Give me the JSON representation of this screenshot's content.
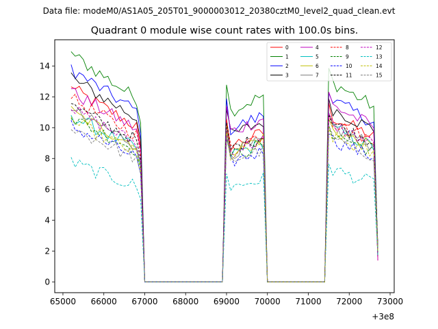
{
  "figure": {
    "suptitle": "Data file: modeM0/AS1A05_205T01_9000003012_20380cztM0_level2_quad_clean.evt"
  },
  "chart_data": {
    "type": "line",
    "title": "Quadrant 0 module wise count rates with 100.0s bins.",
    "xlabel": "",
    "ylabel": "",
    "x_offset_label": "+3e8",
    "xlim": [
      64800,
      73100
    ],
    "ylim": [
      -0.7,
      15.7
    ],
    "xticks": [
      65000,
      66000,
      67000,
      68000,
      69000,
      70000,
      71000,
      72000,
      73000
    ],
    "xtick_labels": [
      "65000",
      "66000",
      "67000",
      "68000",
      "69000",
      "70000",
      "71000",
      "72000",
      "73000"
    ],
    "yticks": [
      0,
      2,
      4,
      6,
      8,
      10,
      12,
      14
    ],
    "ytick_labels": [
      "0",
      "2",
      "4",
      "6",
      "8",
      "10",
      "12",
      "14"
    ],
    "grid": false,
    "legend_location": "top-right",
    "legend_columns": 4,
    "x": [
      65200,
      65300,
      65400,
      65500,
      65600,
      65700,
      65800,
      65900,
      66000,
      66100,
      66200,
      66300,
      66400,
      66500,
      66600,
      66700,
      66800,
      66900,
      67000,
      67100,
      67200,
      67300,
      67400,
      67500,
      67600,
      67700,
      67800,
      67900,
      68000,
      68100,
      68200,
      68300,
      68400,
      68500,
      68600,
      68700,
      68800,
      68900,
      69000,
      69100,
      69200,
      69300,
      69400,
      69500,
      69600,
      69700,
      69800,
      69900,
      70000,
      70100,
      70200,
      70300,
      70400,
      70500,
      70600,
      70700,
      70800,
      70900,
      71000,
      71100,
      71200,
      71300,
      71400,
      71500,
      71600,
      71700,
      71800,
      71900,
      72000,
      72100,
      72200,
      72300,
      72400,
      72500,
      72600,
      72700
    ],
    "segments": [
      {
        "start": 65200,
        "end": 66800
      },
      {
        "start": 69000,
        "end": 69900
      },
      {
        "start": 71500,
        "end": 72600
      }
    ],
    "series": [
      {
        "name": "0",
        "color": "#ff0000",
        "dash": "solid",
        "mean1": 11.2,
        "mean2": 9.1,
        "mean3": 10.0
      },
      {
        "name": "1",
        "color": "#008000",
        "dash": "solid",
        "mean1": 13.2,
        "mean2": 11.4,
        "mean3": 12.1
      },
      {
        "name": "2",
        "color": "#0000ff",
        "dash": "solid",
        "mean1": 12.3,
        "mean2": 10.2,
        "mean3": 11.0
      },
      {
        "name": "3",
        "color": "#000000",
        "dash": "solid",
        "mean1": 11.8,
        "mean2": 9.8,
        "mean3": 10.5
      },
      {
        "name": "4",
        "color": "#bf00bf",
        "dash": "solid",
        "mean1": 11.0,
        "mean2": 10.0,
        "mean3": 10.7
      },
      {
        "name": "5",
        "color": "#00bfbf",
        "dash": "solid",
        "mean1": 9.6,
        "mean2": 8.5,
        "mean3": 9.3
      },
      {
        "name": "6",
        "color": "#bfbf00",
        "dash": "solid",
        "mean1": 9.8,
        "mean2": 8.8,
        "mean3": 9.2
      },
      {
        "name": "7",
        "color": "#808080",
        "dash": "solid",
        "mean1": 9.9,
        "mean2": 8.6,
        "mean3": 9.4
      },
      {
        "name": "8",
        "color": "#ff0000",
        "dash": "dashed",
        "mean1": 10.6,
        "mean2": 9.0,
        "mean3": 9.7
      },
      {
        "name": "9",
        "color": "#008000",
        "dash": "dashed",
        "mean1": 9.5,
        "mean2": 8.4,
        "mean3": 9.0
      },
      {
        "name": "10",
        "color": "#0000ff",
        "dash": "dashed",
        "mean1": 9.0,
        "mean2": 8.0,
        "mean3": 8.6
      },
      {
        "name": "11",
        "color": "#000000",
        "dash": "dashed",
        "mean1": 10.2,
        "mean2": 8.9,
        "mean3": 9.6
      },
      {
        "name": "12",
        "color": "#bf00bf",
        "dash": "dashed",
        "mean1": 10.0,
        "mean2": 8.7,
        "mean3": 9.5
      },
      {
        "name": "13",
        "color": "#00bfbf",
        "dash": "dashed",
        "mean1": 6.9,
        "mean2": 6.3,
        "mean3": 6.8
      },
      {
        "name": "14",
        "color": "#bfbf00",
        "dash": "dashed",
        "mean1": 9.3,
        "mean2": 8.4,
        "mean3": 8.8
      },
      {
        "name": "15",
        "color": "#808080",
        "dash": "dashed",
        "mean1": 8.9,
        "mean2": 8.1,
        "mean3": 8.7
      }
    ]
  }
}
